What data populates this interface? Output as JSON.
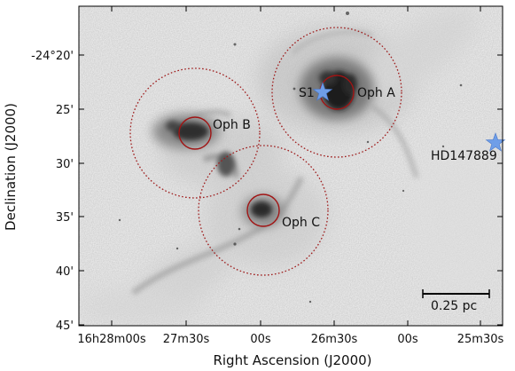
{
  "axes": {
    "xlabel": "Right Ascension (J2000)",
    "ylabel": "Declination (J2000)",
    "xticks": [
      "16h28m00s",
      "27m30s",
      "00s",
      "26m30s",
      "00s",
      "25m30s"
    ],
    "yticks": [
      "-24°20'",
      "25'",
      "30'",
      "35'",
      "40'",
      "45'"
    ]
  },
  "regions": [
    {
      "name": "Oph A"
    },
    {
      "name": "Oph B"
    },
    {
      "name": "Oph C"
    }
  ],
  "sources": [
    {
      "name": "S1"
    },
    {
      "name": "HD147889"
    }
  ],
  "scale_bar": {
    "label": "0.25 pc"
  },
  "colors": {
    "region_circle": "#9e1b1b",
    "star_marker": "#6f9ee8",
    "background": "#ffffff"
  },
  "image": {
    "colormap": "inverted grayscale"
  }
}
